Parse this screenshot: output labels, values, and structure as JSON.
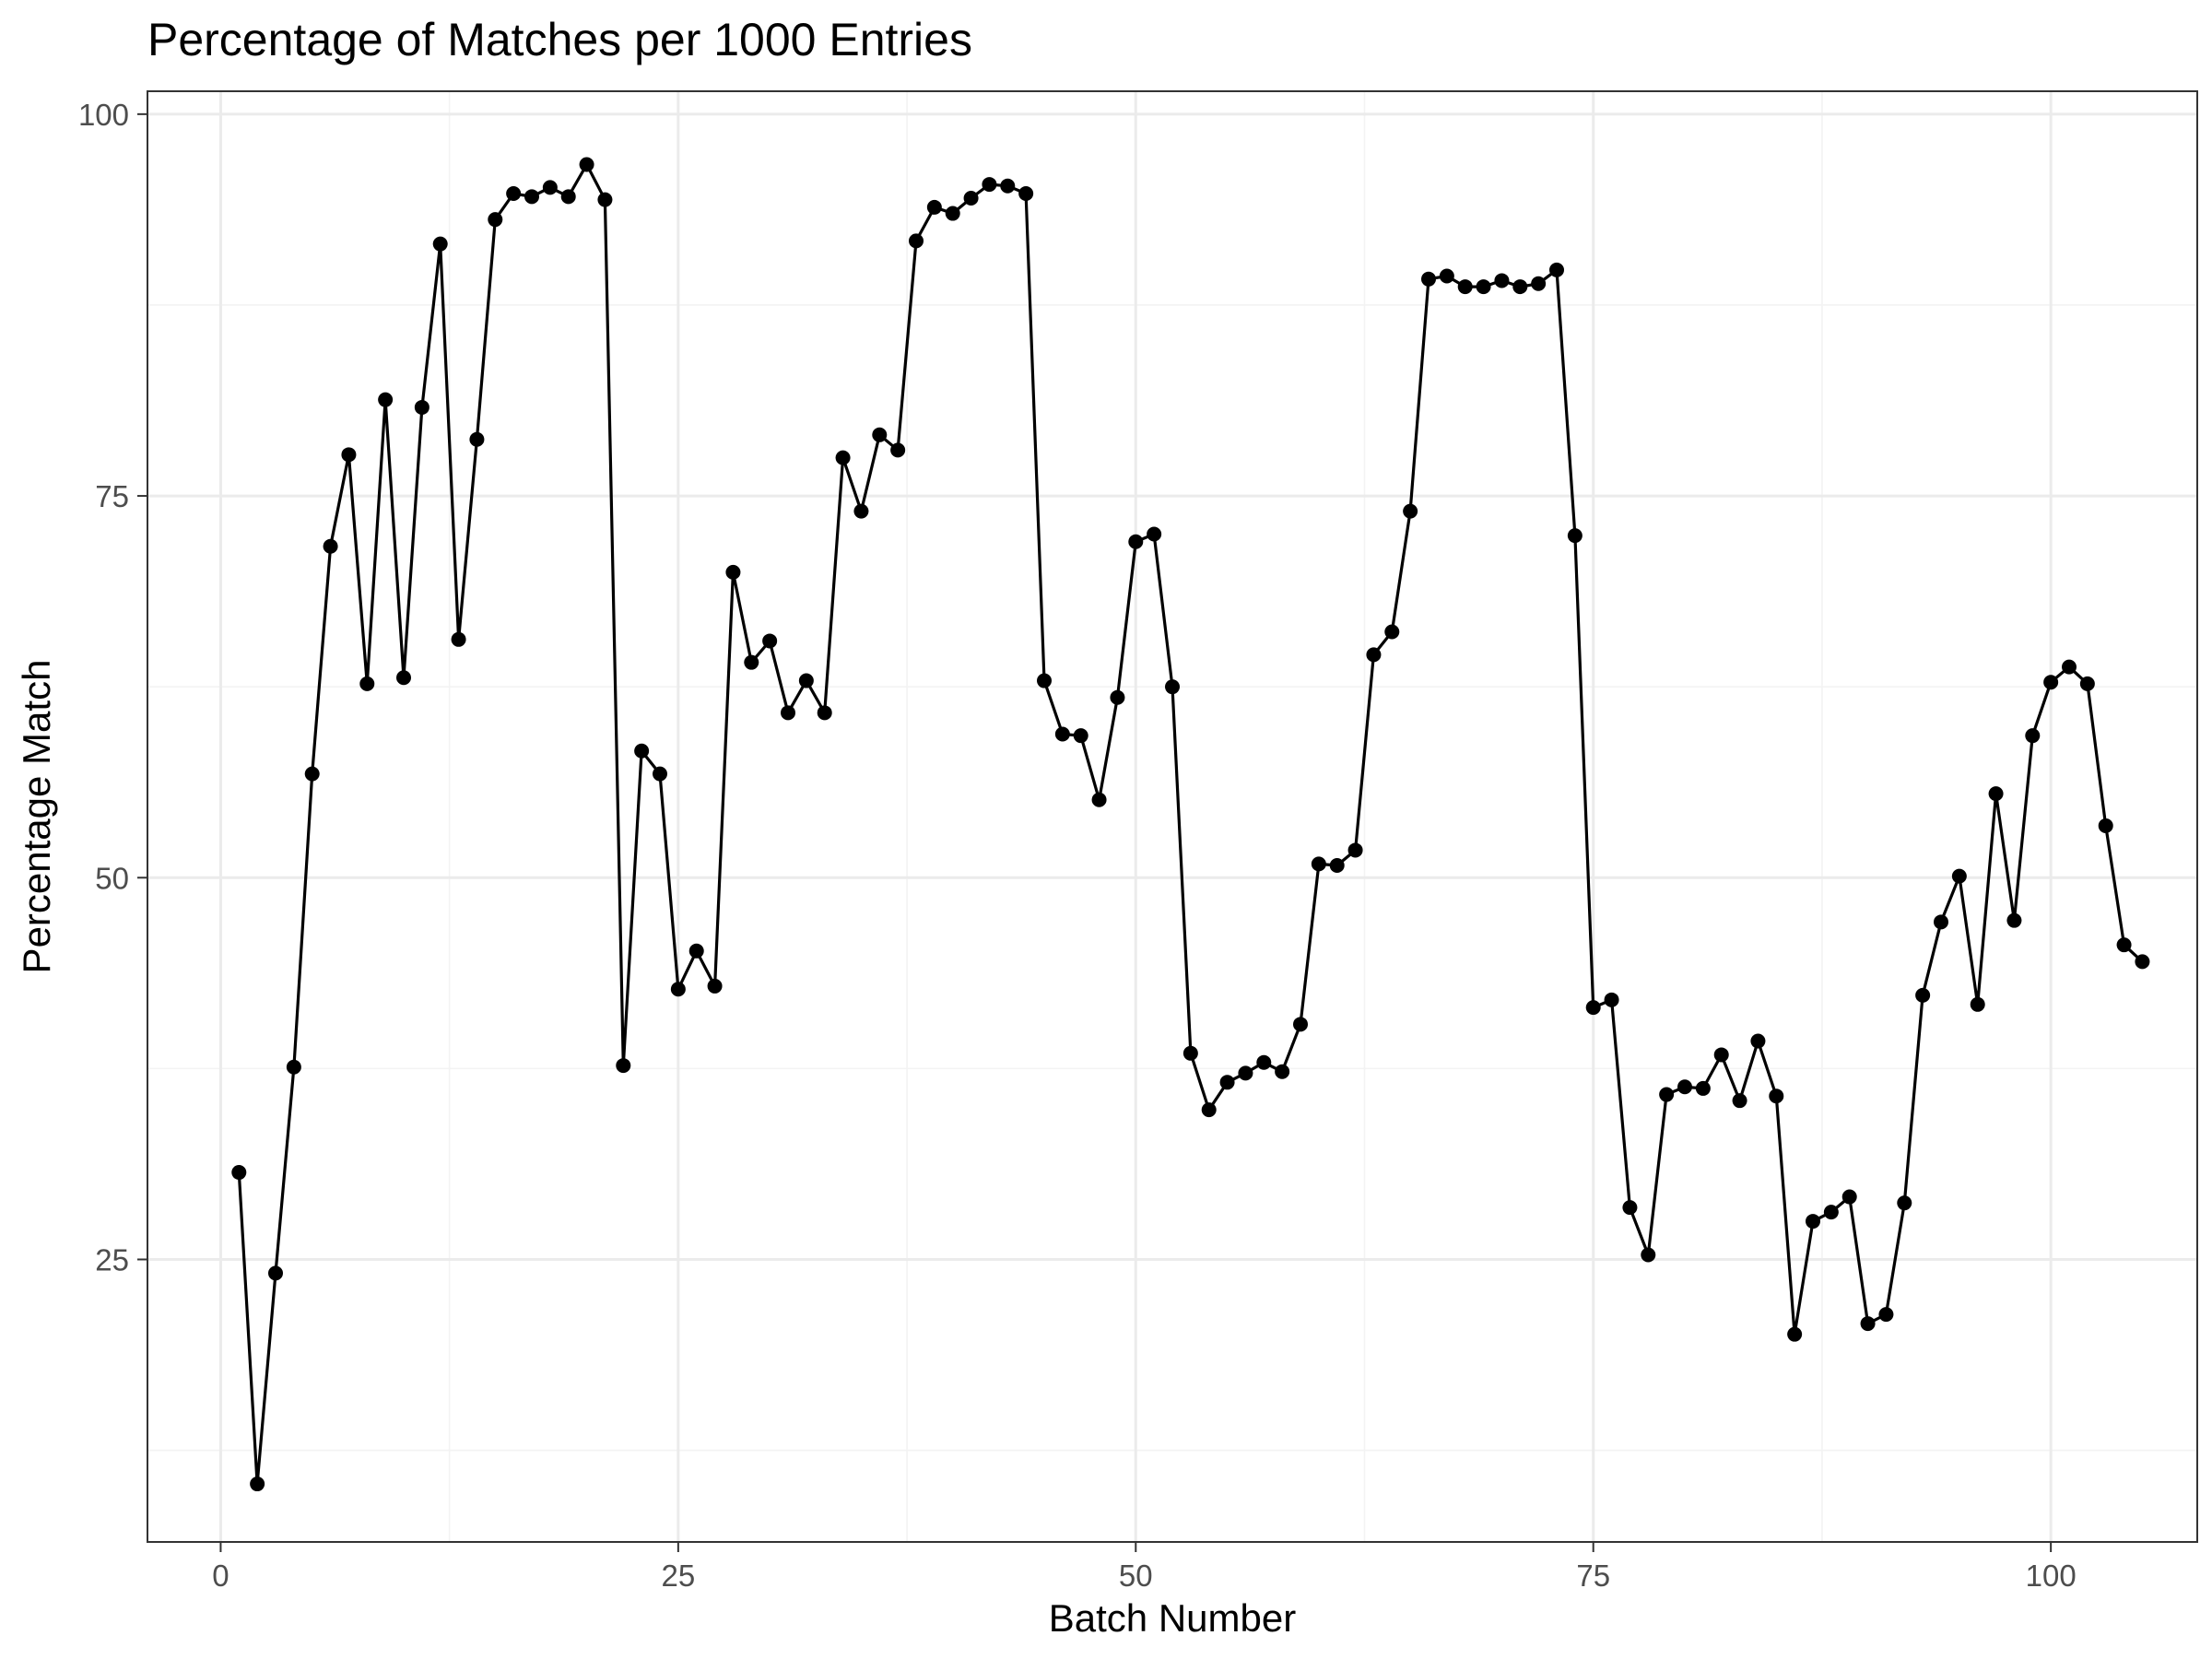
{
  "chart_data": {
    "type": "line",
    "title": "Percentage of Matches per 1000 Entries",
    "xlabel": "Batch Number",
    "ylabel": "Percentage Match",
    "xlim": [
      -4,
      108
    ],
    "ylim": [
      6.5,
      101.5
    ],
    "x_ticks": [
      0,
      25,
      50,
      75,
      100
    ],
    "y_ticks": [
      25,
      50,
      75,
      100
    ],
    "x_minor": [
      12.5,
      37.5,
      62.5,
      87.5
    ],
    "y_minor": [
      12.5,
      37.5,
      62.5,
      87.5
    ],
    "grid": true,
    "legend": "none",
    "line_color": "#000000",
    "series": [
      {
        "x": [
          1,
          2,
          3,
          4,
          5,
          6,
          7,
          8,
          9,
          10,
          11,
          12,
          13,
          14,
          15,
          16,
          17,
          18,
          19,
          20,
          21,
          22,
          23,
          24,
          25,
          26,
          27,
          28,
          29,
          30,
          31,
          32,
          33,
          34,
          35,
          36,
          37,
          38,
          39,
          40,
          41,
          42,
          43,
          44,
          45,
          46,
          47,
          48,
          49,
          50,
          51,
          52,
          53,
          54,
          55,
          56,
          57,
          58,
          59,
          60,
          61,
          62,
          63,
          64,
          65,
          66,
          67,
          68,
          69,
          70,
          71,
          72,
          73,
          74,
          75,
          76,
          77,
          78,
          79,
          80,
          81,
          82,
          83,
          84,
          85,
          86,
          87,
          88,
          89,
          90,
          91,
          92,
          93,
          94,
          95,
          96,
          97,
          98,
          99,
          100,
          101,
          102,
          103,
          104,
          105
        ],
        "values": [
          30.7,
          10.3,
          24.1,
          37.6,
          56.8,
          71.7,
          77.7,
          62.7,
          81.3,
          63.1,
          80.8,
          91.5,
          65.6,
          78.7,
          93.1,
          94.8,
          94.6,
          95.2,
          94.6,
          96.7,
          94.4,
          37.7,
          58.3,
          56.8,
          42.7,
          45.2,
          42.9,
          70.0,
          64.1,
          65.5,
          60.8,
          62.9,
          60.8,
          77.5,
          74.0,
          79.0,
          78.0,
          91.7,
          93.9,
          93.5,
          94.5,
          95.4,
          95.3,
          94.8,
          62.9,
          59.4,
          59.3,
          55.1,
          61.8,
          72.0,
          72.5,
          62.5,
          38.5,
          34.8,
          36.6,
          37.2,
          37.9,
          37.3,
          40.4,
          50.9,
          50.8,
          51.8,
          64.6,
          66.1,
          74.0,
          89.2,
          89.4,
          88.7,
          88.7,
          89.1,
          88.7,
          88.9,
          89.8,
          72.4,
          41.5,
          42.0,
          28.4,
          25.3,
          35.8,
          36.3,
          36.2,
          38.4,
          35.4,
          39.3,
          35.7,
          20.1,
          27.5,
          28.1,
          29.1,
          20.8,
          21.4,
          28.7,
          42.3,
          47.1,
          50.1,
          41.7,
          55.5,
          47.2,
          59.3,
          62.8,
          63.8,
          62.7,
          53.4,
          45.6,
          44.5
        ]
      }
    ]
  }
}
